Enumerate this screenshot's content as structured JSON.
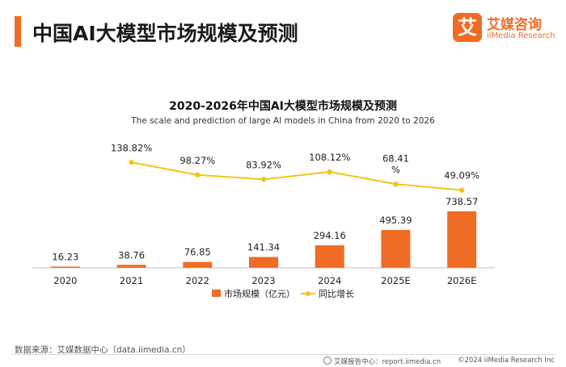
{
  "header": {
    "title": "中国AI大模型市场规模及预测"
  },
  "logo": {
    "mark": "艾",
    "name_cn": "艾媒咨询",
    "name_en": "iiMedia Research",
    "color": "#F06C24"
  },
  "chart_data": {
    "type": "bar",
    "title": "2020-2026年中国AI大模型市场规模及预测",
    "subtitle": "The scale and prediction of large AI models in China from 2020 to 2026",
    "categories": [
      "2020",
      "2021",
      "2022",
      "2023",
      "2024",
      "2025E",
      "2026E"
    ],
    "series": [
      {
        "name": "市场规模（亿元）",
        "type": "bar",
        "color": "#F06C24",
        "values": [
          16.23,
          38.76,
          76.85,
          141.34,
          294.16,
          495.39,
          738.57
        ],
        "labels": [
          "16.23",
          "38.76",
          "76.85",
          "141.34",
          "294.16",
          "495.39",
          "738.57"
        ]
      },
      {
        "name": "同比增长",
        "type": "line",
        "color": "#F2C417",
        "values": [
          null,
          138.82,
          98.27,
          83.92,
          108.12,
          68.41,
          49.09
        ],
        "labels": [
          "",
          "138.82%",
          "98.27%",
          "83.92%",
          "108.12%",
          "68.41\n%",
          "49.09%"
        ]
      }
    ],
    "ylim": [
      0,
      760
    ],
    "legend_position": "bottom",
    "grid": false
  },
  "footer": {
    "source": "数据来源：艾媒数据中心（data.iimedia.cn）",
    "center": "艾媒报告中心：report.iimedia.cn",
    "copyright": "©2024  iiMedia Research  Inc"
  }
}
